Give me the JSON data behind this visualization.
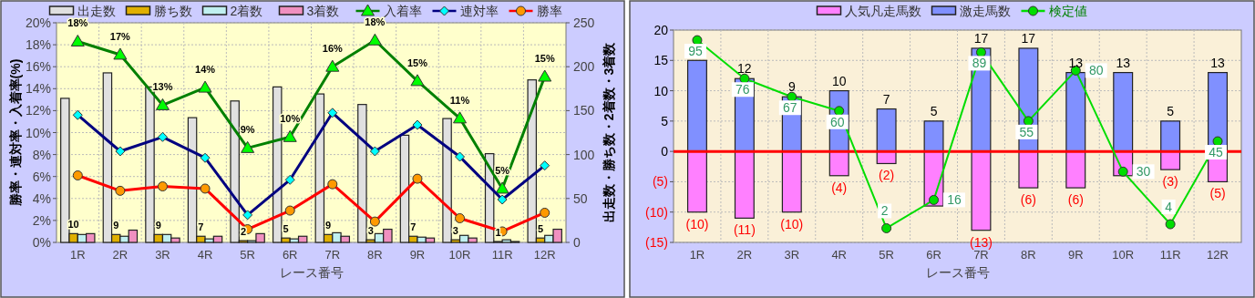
{
  "chart_data": [
    {
      "type": "bar",
      "categories": [
        "1R",
        "2R",
        "3R",
        "4R",
        "5R",
        "6R",
        "7R",
        "8R",
        "9R",
        "10R",
        "11R",
        "12R"
      ],
      "xlabel": "レース番号",
      "ylabel": "勝率・連対率・入着率(%)",
      "y2label": "出走数・勝ち数・2着数・3着数",
      "ylim": [
        0,
        20
      ],
      "yticks": [
        {
          "value": 0,
          "label": "0%"
        },
        {
          "value": 2,
          "label": "2%"
        },
        {
          "value": 4,
          "label": "4%"
        },
        {
          "value": 6,
          "label": "6%"
        },
        {
          "value": 8,
          "label": "8%"
        },
        {
          "value": 10,
          "label": "10%"
        },
        {
          "value": 12,
          "label": "12%"
        },
        {
          "value": 14,
          "label": "14%"
        },
        {
          "value": 16,
          "label": "16%"
        },
        {
          "value": 18,
          "label": "18%"
        },
        {
          "value": 20,
          "label": "20%"
        }
      ],
      "y2lim": [
        0,
        250
      ],
      "y2ticks": [
        0,
        50,
        100,
        150,
        200,
        250
      ],
      "grid": true,
      "legend": "top",
      "series": [
        {
          "name": "出走数",
          "axis": "y2",
          "color": "#e0e0e0",
          "values": [
            164,
            193,
            177,
            142,
            161,
            177,
            169,
            157,
            122,
            141,
            101,
            185
          ]
        },
        {
          "name": "勝ち数",
          "axis": "y2",
          "color": "#e0b000",
          "values": [
            10,
            9,
            9,
            7,
            2,
            5,
            9,
            3,
            7,
            3,
            1,
            5
          ],
          "value_labels": [
            "10",
            "9",
            "9",
            "7",
            "2",
            "5",
            "9",
            "3",
            "7",
            "3",
            "1",
            "5"
          ]
        },
        {
          "name": "2着数",
          "axis": "y2",
          "color": "#c0f0f0",
          "values": [
            9,
            7,
            9,
            4,
            2,
            4,
            11,
            10,
            6,
            8,
            3,
            8
          ]
        },
        {
          "name": "3着数",
          "axis": "y2",
          "color": "#f090c0",
          "values": [
            10,
            14,
            5,
            7,
            10,
            7,
            7,
            15,
            5,
            5,
            1,
            15
          ]
        },
        {
          "name": "入着率",
          "type": "line",
          "axis": "y",
          "marker": "triangle",
          "color": "#008000",
          "values": [
            18.3,
            17.1,
            12.5,
            14.1,
            8.6,
            9.6,
            16.0,
            18.4,
            14.7,
            11.3,
            4.9,
            15.1
          ],
          "value_labels": [
            "18%",
            "17%",
            "13%",
            "14%",
            "9%",
            "10%",
            "16%",
            "18%",
            "15%",
            "11%",
            "5%",
            "15%"
          ]
        },
        {
          "name": "連対率",
          "type": "line",
          "axis": "y",
          "marker": "diamond",
          "color": "#000080",
          "values": [
            11.6,
            8.3,
            9.6,
            7.7,
            2.5,
            5.7,
            11.8,
            8.3,
            10.7,
            7.8,
            3.9,
            7.0
          ]
        },
        {
          "name": "勝率",
          "type": "line",
          "axis": "y",
          "marker": "circle",
          "color": "#ff0000",
          "values": [
            6.1,
            4.7,
            5.1,
            4.9,
            1.2,
            2.9,
            5.3,
            1.9,
            5.8,
            2.2,
            1.0,
            2.7
          ]
        }
      ]
    },
    {
      "type": "bar",
      "stacked": true,
      "categories": [
        "1R",
        "2R",
        "3R",
        "4R",
        "5R",
        "6R",
        "7R",
        "8R",
        "9R",
        "10R",
        "11R",
        "12R"
      ],
      "xlabel": "レース番号",
      "ylim": [
        -15,
        20
      ],
      "yticks": [
        {
          "value": -15,
          "label": "(15)"
        },
        {
          "value": -10,
          "label": "(10)"
        },
        {
          "value": -5,
          "label": "(5)"
        },
        0,
        5,
        10,
        15,
        20
      ],
      "y2lim": [
        -5,
        100
      ],
      "grid": true,
      "legend": "top",
      "ref_lines": [
        {
          "axis": "y",
          "value": 0,
          "color": "#ff0000"
        }
      ],
      "series": [
        {
          "name": "人気凡走馬数",
          "color": "#ff80ff",
          "values": [
            -10,
            -11,
            -10,
            -4,
            -2,
            -9,
            -13,
            -6,
            -6,
            -4,
            -3,
            -5
          ],
          "value_labels": [
            "(10)",
            "(11)",
            "(10)",
            "(4)",
            "(2)",
            null,
            "(13)",
            "(6)",
            "(6)",
            null,
            "(3)",
            "(5)"
          ]
        },
        {
          "name": "激走馬数",
          "color": "#8090ff",
          "values": [
            15,
            12,
            9,
            10,
            7,
            5,
            17,
            17,
            13,
            13,
            5,
            13
          ],
          "value_labels": [
            null,
            "12",
            "9",
            "10",
            "7",
            "5",
            "17",
            "17",
            "13",
            "13",
            "5",
            "13"
          ]
        },
        {
          "name": "検定値",
          "type": "line",
          "axis": "y2",
          "marker": "circle",
          "color": "#00dd00",
          "values": [
            95,
            76,
            67,
            60,
            2,
            16,
            89,
            55,
            80,
            30,
            4,
            45
          ],
          "value_labels": [
            "95",
            "76",
            "67",
            "60",
            "2",
            "16",
            "89",
            "55",
            "80",
            "30",
            "4",
            "45"
          ]
        }
      ]
    }
  ]
}
